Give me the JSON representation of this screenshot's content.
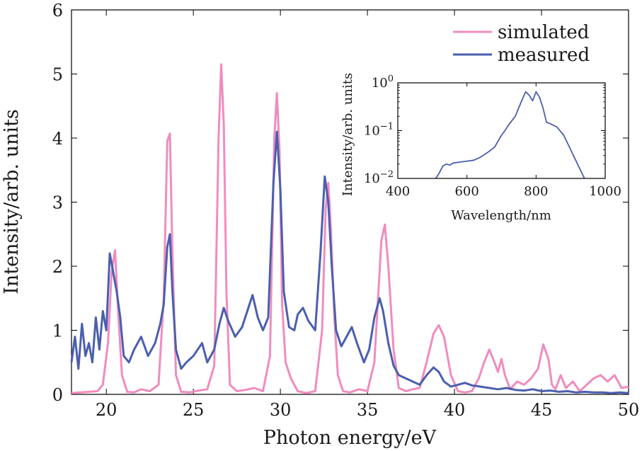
{
  "chart_data": [
    {
      "type": "line",
      "xlabel": "Photon energy/eV",
      "ylabel": "Intensity/arb. units",
      "xlim": [
        18,
        50
      ],
      "ylim": [
        0,
        6
      ],
      "x_ticks": [
        20,
        25,
        30,
        35,
        40,
        45,
        50
      ],
      "y_ticks": [
        0,
        1,
        2,
        3,
        4,
        5,
        6
      ],
      "legend_position": "top-right",
      "grid": false,
      "series": [
        {
          "name": "simulated",
          "color": "#f08cbf",
          "x": [
            18,
            18.5,
            19,
            19.5,
            19.8,
            20.1,
            20.3,
            20.5,
            20.7,
            20.9,
            21.2,
            21.6,
            22,
            22.5,
            23,
            23.3,
            23.5,
            23.65,
            23.8,
            24,
            24.3,
            24.8,
            25.3,
            25.8,
            26.2,
            26.45,
            26.6,
            26.75,
            26.9,
            27.1,
            27.5,
            28,
            28.5,
            29,
            29.4,
            29.65,
            29.8,
            29.95,
            30.1,
            30.3,
            30.6,
            31,
            31.5,
            32,
            32.4,
            32.6,
            32.75,
            32.9,
            33.1,
            33.3,
            33.6,
            34,
            34.5,
            35,
            35.4,
            35.8,
            36,
            36.2,
            36.5,
            36.8,
            37.2,
            37.6,
            38,
            38.4,
            38.8,
            39.1,
            39.4,
            39.8,
            40.2,
            40.6,
            41,
            41.4,
            41.7,
            42,
            42.3,
            42.5,
            42.7,
            42.9,
            43.2,
            43.6,
            44,
            44.4,
            44.8,
            45.1,
            45.4,
            45.6,
            45.8,
            46.1,
            46.4,
            46.8,
            47.2,
            47.6,
            48,
            48.4,
            48.8,
            49.2,
            49.6,
            50
          ],
          "y": [
            0.02,
            0.03,
            0.04,
            0.05,
            0.15,
            0.8,
            1.9,
            2.25,
            1.2,
            0.3,
            0.04,
            0.03,
            0.08,
            0.05,
            0.15,
            1.5,
            3.95,
            4.07,
            2.2,
            0.3,
            0.04,
            0.03,
            0.06,
            0.08,
            0.45,
            4.0,
            5.15,
            4.2,
            1.6,
            0.15,
            0.05,
            0.07,
            0.1,
            0.05,
            0.6,
            4.0,
            4.7,
            3.8,
            1.4,
            0.5,
            0.25,
            0.05,
            0.02,
            0.05,
            1.0,
            2.9,
            3.3,
            2.6,
            1.2,
            0.3,
            0.05,
            0.03,
            0.08,
            0.05,
            0.5,
            2.4,
            2.65,
            2.0,
            0.7,
            0.1,
            0.05,
            0.08,
            0.1,
            0.5,
            0.95,
            1.08,
            0.9,
            0.3,
            0.05,
            0.03,
            0.05,
            0.25,
            0.5,
            0.7,
            0.5,
            0.35,
            0.55,
            0.3,
            0.08,
            0.2,
            0.15,
            0.25,
            0.4,
            0.78,
            0.55,
            0.15,
            0.08,
            0.3,
            0.1,
            0.2,
            0.05,
            0.15,
            0.25,
            0.3,
            0.2,
            0.3,
            0.1,
            0.12
          ]
        },
        {
          "name": "measured",
          "color": "#4b5fae",
          "x": [
            18,
            18.2,
            18.4,
            18.6,
            18.8,
            19,
            19.2,
            19.4,
            19.6,
            19.8,
            20,
            20.2,
            20.4,
            20.6,
            20.8,
            21,
            21.3,
            21.6,
            22,
            22.4,
            22.8,
            23.1,
            23.3,
            23.5,
            23.65,
            23.8,
            24,
            24.3,
            24.6,
            25,
            25.5,
            25.8,
            26.2,
            26.5,
            26.75,
            27,
            27.4,
            27.8,
            28.1,
            28.4,
            28.7,
            29,
            29.3,
            29.6,
            29.8,
            30,
            30.2,
            30.5,
            30.8,
            31,
            31.3,
            31.6,
            32,
            32.3,
            32.55,
            32.75,
            32.95,
            33.2,
            33.5,
            33.8,
            34.1,
            34.4,
            34.8,
            35.1,
            35.4,
            35.7,
            35.9,
            36.2,
            36.5,
            36.8,
            37.2,
            37.6,
            38,
            38.4,
            38.8,
            39.1,
            39.4,
            39.8,
            40.2,
            40.6,
            41,
            41.5,
            42,
            42.5,
            43,
            43.5,
            44,
            44.5,
            45,
            45.5,
            46,
            46.5,
            47,
            47.5,
            48,
            48.5,
            49,
            49.5,
            50
          ],
          "y": [
            0.5,
            0.9,
            0.4,
            1.1,
            0.6,
            0.8,
            0.5,
            1.2,
            0.7,
            1.3,
            1.0,
            2.2,
            1.9,
            1.6,
            1.2,
            0.6,
            0.5,
            0.7,
            0.9,
            0.6,
            0.8,
            1.1,
            1.4,
            2.3,
            2.5,
            1.6,
            0.7,
            0.4,
            0.5,
            0.6,
            0.8,
            0.5,
            0.7,
            1.1,
            1.35,
            1.15,
            0.9,
            1.05,
            1.3,
            1.55,
            1.2,
            1.0,
            1.2,
            3.3,
            4.1,
            3.2,
            1.6,
            1.05,
            1.0,
            1.25,
            1.35,
            1.15,
            1.0,
            2.2,
            3.4,
            3.0,
            2.0,
            1.0,
            0.75,
            0.9,
            1.05,
            0.8,
            0.5,
            0.7,
            1.2,
            1.5,
            1.3,
            0.8,
            0.45,
            0.3,
            0.25,
            0.2,
            0.15,
            0.3,
            0.42,
            0.35,
            0.2,
            0.12,
            0.15,
            0.18,
            0.14,
            0.12,
            0.1,
            0.08,
            0.1,
            0.07,
            0.06,
            0.08,
            0.05,
            0.06,
            0.04,
            0.05,
            0.03,
            0.04,
            0.03,
            0.03,
            0.02,
            0.03,
            0.02
          ]
        }
      ]
    },
    {
      "type": "line",
      "scale_y": "log",
      "xlabel": "Wavelength/nm",
      "ylabel": "Intensity/arb. units",
      "xlim": [
        400,
        1000
      ],
      "ylim": [
        0.01,
        1
      ],
      "x_ticks": [
        400,
        600,
        800,
        1000
      ],
      "y_ticks": [
        {
          "value": 1,
          "base": "10",
          "exp": "0"
        },
        {
          "value": 0.1,
          "base": "10",
          "exp": "−1"
        },
        {
          "value": 0.01,
          "base": "10",
          "exp": "−2"
        }
      ],
      "series": [
        {
          "color": "#4b5fae",
          "x": [
            510,
            520,
            530,
            540,
            550,
            560,
            580,
            600,
            620,
            640,
            660,
            680,
            700,
            710,
            720,
            740,
            760,
            770,
            780,
            790,
            800,
            810,
            820,
            830,
            840,
            860,
            880,
            900,
            920,
            940
          ],
          "y": [
            0.01,
            0.013,
            0.018,
            0.02,
            0.019,
            0.021,
            0.022,
            0.023,
            0.024,
            0.028,
            0.035,
            0.045,
            0.08,
            0.1,
            0.13,
            0.2,
            0.45,
            0.65,
            0.55,
            0.42,
            0.65,
            0.5,
            0.3,
            0.15,
            0.14,
            0.12,
            0.08,
            0.04,
            0.02,
            0.01
          ]
        }
      ]
    }
  ]
}
